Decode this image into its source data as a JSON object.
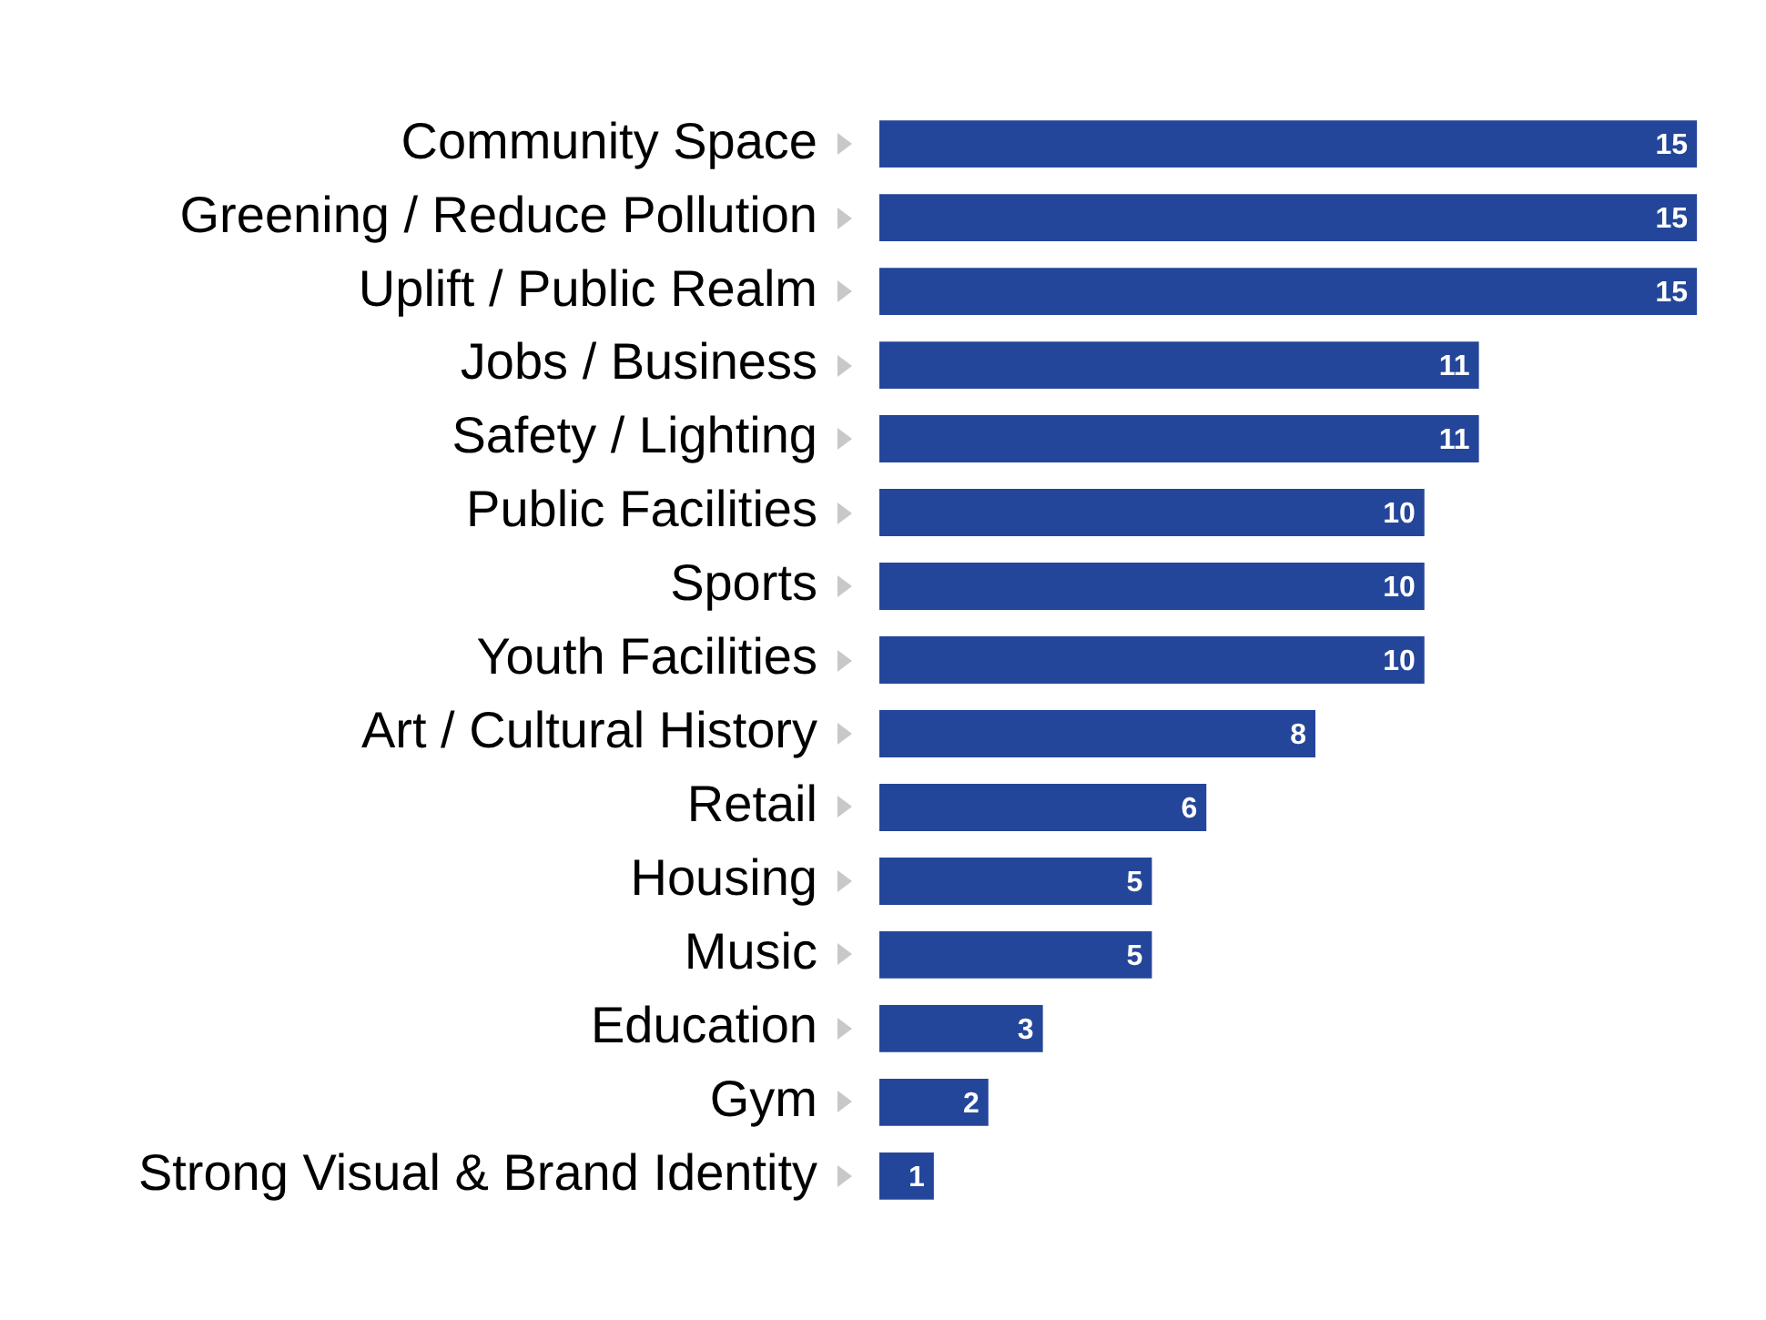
{
  "chart_data": {
    "type": "bar",
    "orientation": "horizontal",
    "categories": [
      "Community Space",
      "Greening / Reduce Pollution",
      "Uplift / Public Realm",
      "Jobs / Business",
      "Safety / Lighting",
      "Public Facilities",
      "Sports",
      "Youth Facilities",
      "Art / Cultural History",
      "Retail",
      "Housing",
      "Music",
      "Education",
      "Gym",
      "Strong Visual & Brand Identity"
    ],
    "values": [
      15,
      15,
      15,
      11,
      11,
      10,
      10,
      10,
      8,
      6,
      5,
      5,
      3,
      2,
      1
    ],
    "color": "#24469a",
    "data_labels": true,
    "grid": false,
    "legend": false,
    "tick_labels": "y"
  }
}
